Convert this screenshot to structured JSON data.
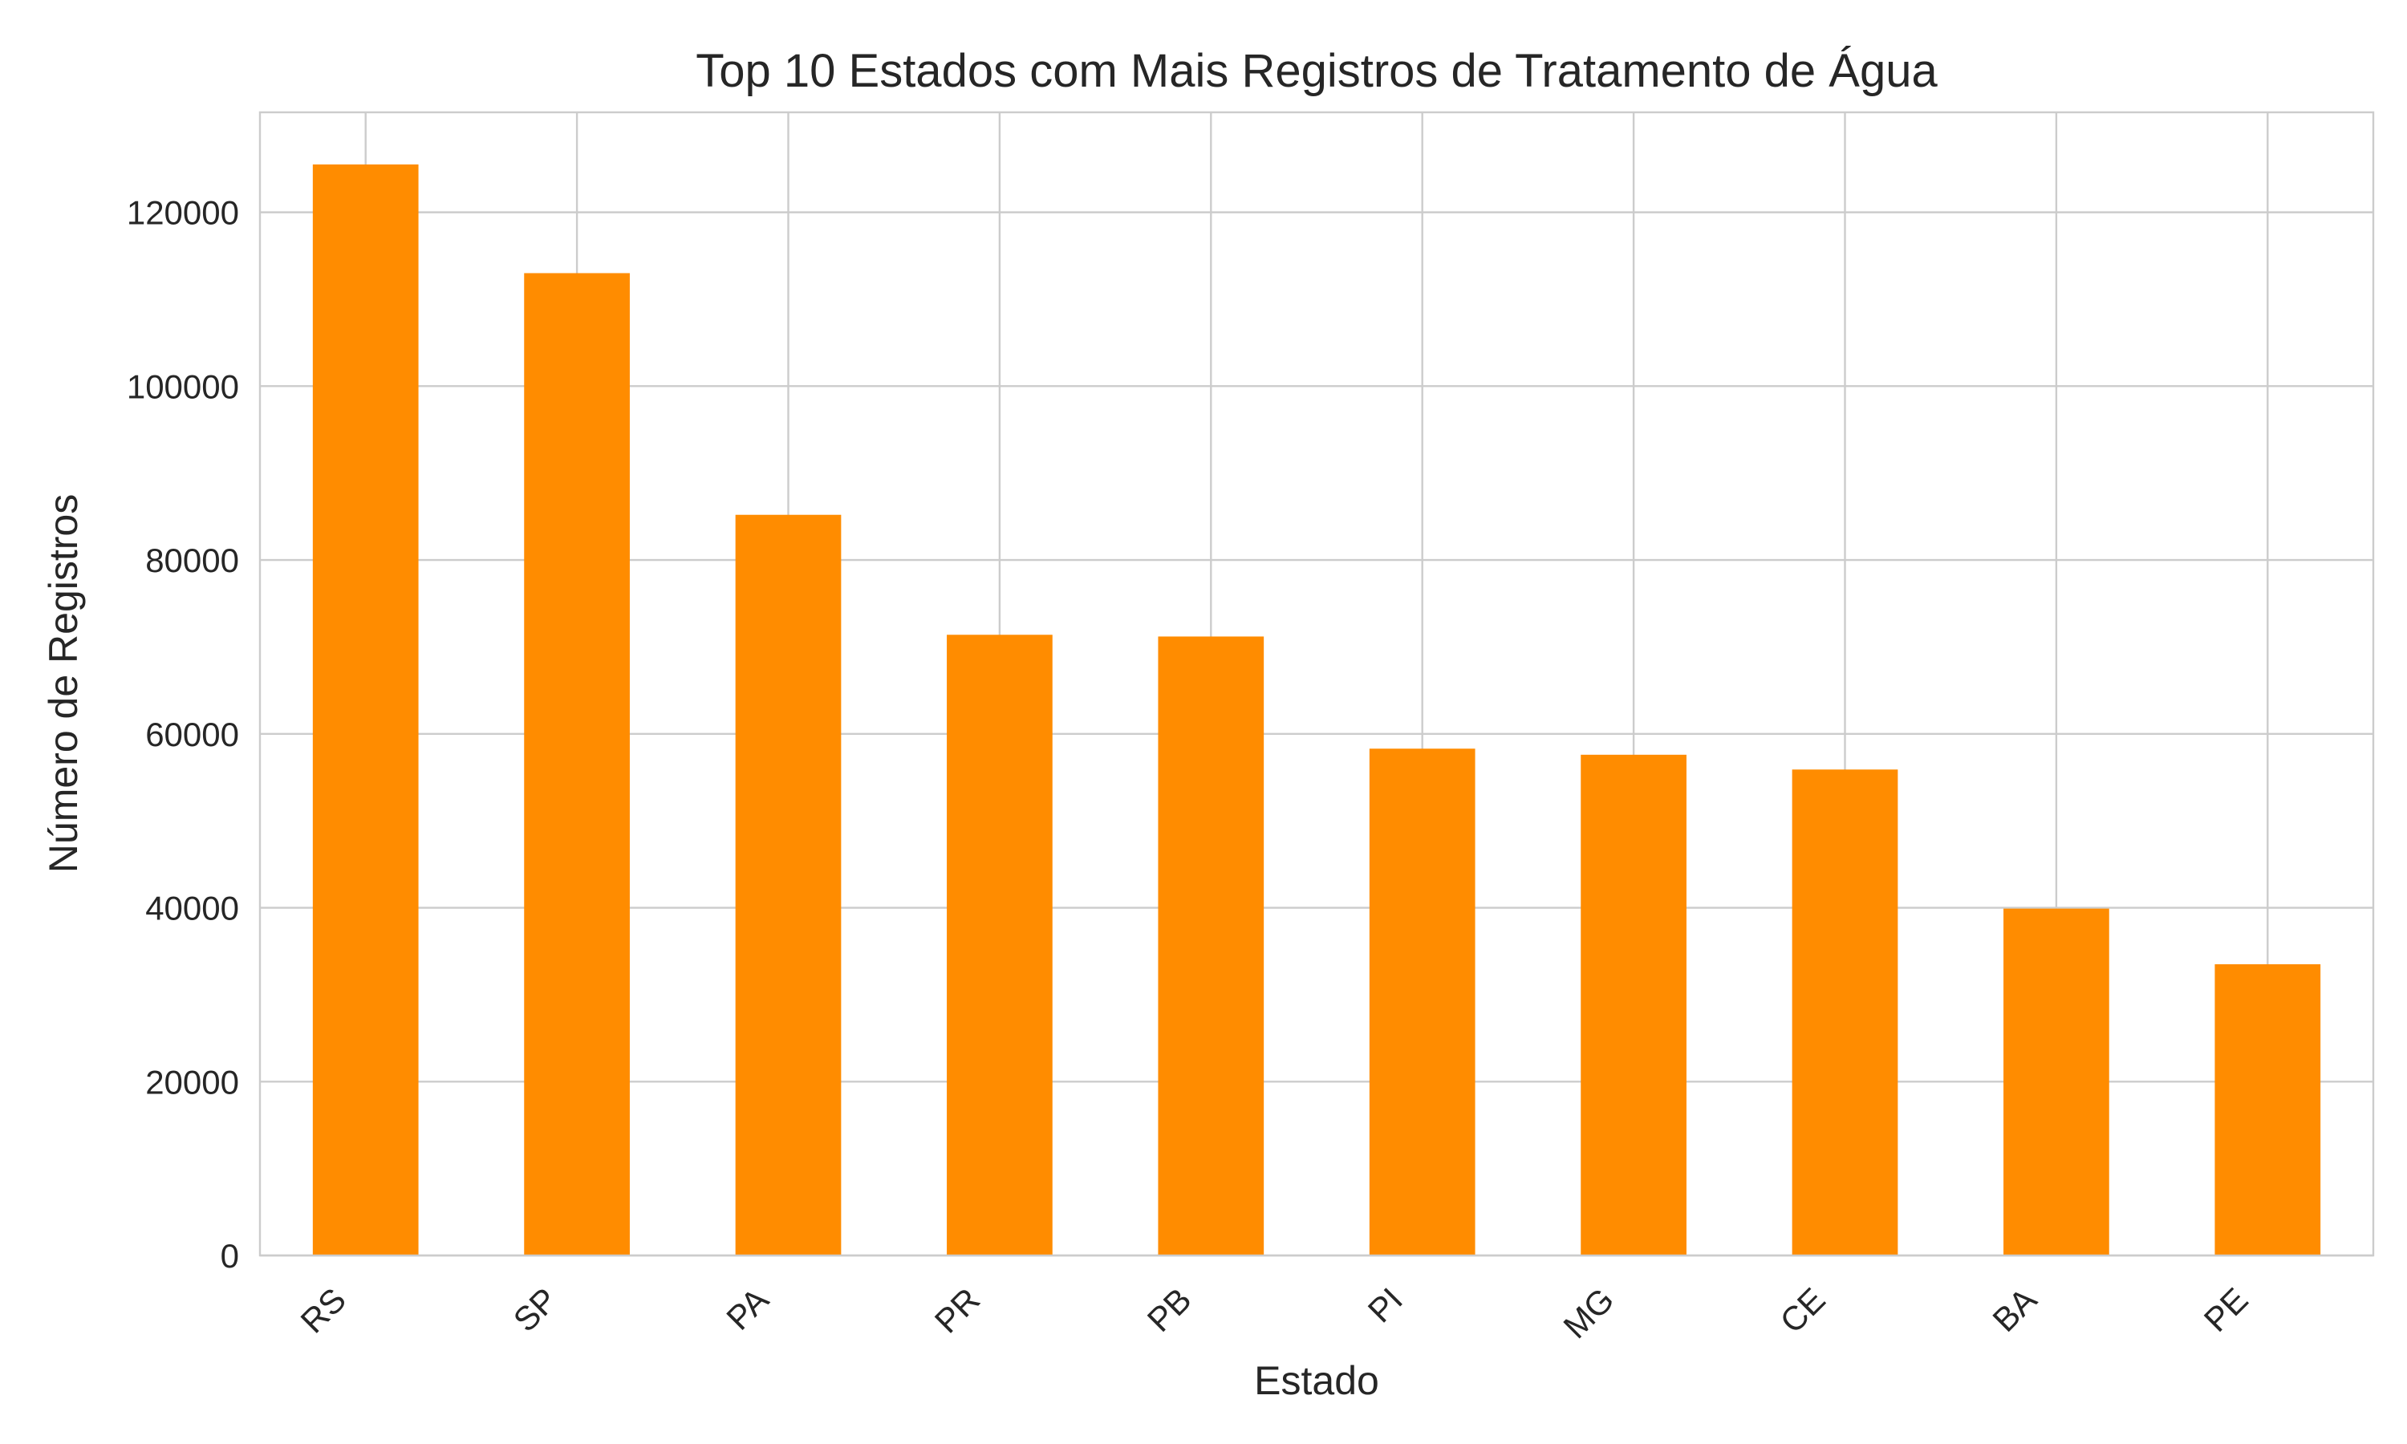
{
  "chart_data": {
    "type": "bar",
    "title": "Top 10 Estados com Mais Registros de Tratamento de Água",
    "xlabel": "Estado",
    "ylabel": "Número de Registros",
    "categories": [
      "RS",
      "SP",
      "PA",
      "PR",
      "PB",
      "PI",
      "MG",
      "CE",
      "BA",
      "PE"
    ],
    "values": [
      125500,
      113000,
      85200,
      71400,
      71200,
      58300,
      57600,
      55900,
      39900,
      33500
    ],
    "ylim": [
      0,
      131500
    ],
    "yticks": [
      0,
      20000,
      40000,
      60000,
      80000,
      100000,
      120000
    ],
    "ytick_labels": [
      "0",
      "20000",
      "40000",
      "60000",
      "80000",
      "100000",
      "120000"
    ],
    "grid": true,
    "bar_color": "#ff8c00",
    "grid_color": "#cccccc"
  }
}
